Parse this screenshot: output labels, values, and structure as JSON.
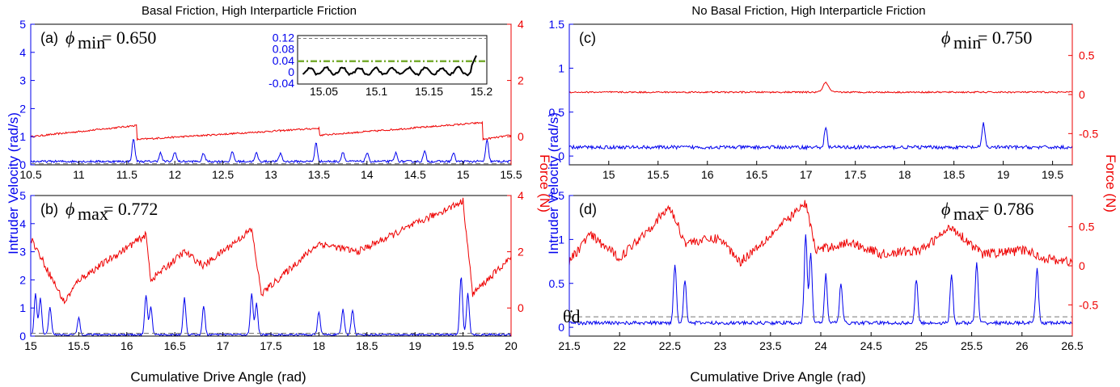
{
  "colors": {
    "velocity": "#0000ee",
    "force": "#ee0000",
    "stall": "#000000",
    "dashed": "#777777",
    "inset_green": "#77ac30"
  },
  "labels": {
    "title_left": "Basal Friction, High Interparticle Friction",
    "title_right": "No Basal Friction, High Interparticle Friction",
    "ylabel_left": "Intruder Velocity (rad/s)",
    "ylabel_right": "Force (N)",
    "xlabel_left": "Cumulative Drive Angle (rad)",
    "xlabel_right": "Cumulative Drive Angle (rad)",
    "theta_dot_d": "θ̇d"
  },
  "chart_data": [
    {
      "panel": "(a)",
      "type": "line",
      "phi_label": "min",
      "phi_value": "= 0.650",
      "xlim": [
        10.5,
        15.5
      ],
      "x_ticks": [
        "10.5",
        "11",
        "11.5",
        "12",
        "12.5",
        "13",
        "13.5",
        "14",
        "14.5",
        "15",
        "15.5"
      ],
      "ylim_left": [
        0,
        5
      ],
      "y_ticks_left": [
        "0",
        "1",
        "2",
        "3",
        "4",
        "5"
      ],
      "ylim_right": [
        -1,
        4
      ],
      "y_ticks_right": [
        "0",
        "2",
        "4"
      ],
      "threshold_velocity": 0.04,
      "series": [
        {
          "name": "velocity",
          "axis": "left",
          "baseline": 0.12,
          "spikes": [
            [
              11.57,
              0.8
            ],
            [
              11.85,
              0.3
            ],
            [
              12.0,
              0.35
            ],
            [
              12.3,
              0.3
            ],
            [
              12.6,
              0.35
            ],
            [
              12.85,
              0.3
            ],
            [
              13.1,
              0.3
            ],
            [
              13.47,
              0.65
            ],
            [
              13.75,
              0.35
            ],
            [
              14.0,
              0.3
            ],
            [
              14.3,
              0.3
            ],
            [
              14.6,
              0.35
            ],
            [
              14.9,
              0.3
            ],
            [
              15.25,
              0.75
            ]
          ]
        },
        {
          "name": "force",
          "axis": "right",
          "baseline": 0.05,
          "ramps": [
            [
              10.5,
              0.0
            ],
            [
              11.6,
              0.4
            ],
            [
              11.6,
              -0.1
            ],
            [
              13.5,
              0.3
            ],
            [
              13.5,
              0.05
            ],
            [
              15.2,
              0.5
            ],
            [
              15.2,
              -0.1
            ],
            [
              15.5,
              0.05
            ]
          ]
        }
      ],
      "inset": {
        "xlim": [
          15.025,
          15.205
        ],
        "x_ticks": [
          "15.05",
          "15.1",
          "15.15",
          "15.2"
        ],
        "ylim": [
          -0.04,
          0.13
        ],
        "y_ticks": [
          "-0.04",
          "0",
          "0.04",
          "0.08",
          "0.12"
        ],
        "dashed_gray": 0.12,
        "dash_green": 0.04
      }
    },
    {
      "panel": "(b)",
      "type": "line",
      "phi_label": "max",
      "phi_value": "= 0.772",
      "xlim": [
        15,
        20
      ],
      "x_ticks": [
        "15",
        "15.5",
        "16",
        "16.5",
        "17",
        "17.5",
        "18",
        "18.5",
        "19",
        "19.5",
        "20"
      ],
      "ylim_left": [
        0,
        5
      ],
      "y_ticks_left": [
        "0",
        "1",
        "2",
        "3",
        "4",
        "5"
      ],
      "ylim_right": [
        -1,
        4
      ],
      "y_ticks_right": [
        "0",
        "2",
        "4"
      ],
      "threshold_velocity": 0.1,
      "series": [
        {
          "name": "velocity",
          "axis": "left",
          "spikes": [
            [
              15.05,
              1.45
            ],
            [
              15.1,
              1.3
            ],
            [
              15.2,
              1.0
            ],
            [
              15.5,
              0.6
            ],
            [
              16.2,
              1.4
            ],
            [
              16.25,
              1.0
            ],
            [
              16.6,
              1.3
            ],
            [
              16.8,
              1.0
            ],
            [
              17.3,
              1.45
            ],
            [
              17.35,
              1.1
            ],
            [
              18.0,
              0.8
            ],
            [
              18.25,
              0.9
            ],
            [
              18.35,
              0.9
            ],
            [
              19.48,
              2.1
            ],
            [
              19.55,
              1.5
            ]
          ]
        },
        {
          "name": "force",
          "axis": "right",
          "ramps": [
            [
              15.0,
              2.5
            ],
            [
              15.35,
              0.2
            ],
            [
              15.5,
              1.0
            ],
            [
              16.2,
              2.6
            ],
            [
              16.25,
              1.0
            ],
            [
              16.6,
              2.0
            ],
            [
              16.8,
              1.5
            ],
            [
              17.3,
              2.8
            ],
            [
              17.4,
              0.5
            ],
            [
              18.0,
              2.3
            ],
            [
              18.4,
              2.0
            ],
            [
              19.5,
              3.8
            ],
            [
              19.6,
              0.5
            ],
            [
              20.0,
              1.8
            ]
          ]
        }
      ]
    },
    {
      "panel": "(c)",
      "type": "line",
      "phi_label": "min",
      "phi_value": "= 0.750",
      "xlim": [
        14.6,
        19.7
      ],
      "x_ticks": [
        "15",
        "15.5",
        "16",
        "16.5",
        "17",
        "17.5",
        "18",
        "18.5",
        "19",
        "19.5"
      ],
      "ylim_left": [
        -0.1,
        1.5
      ],
      "y_ticks_left": [
        "0",
        "0.5",
        "1",
        "1.5"
      ],
      "ylim_right": [
        -0.9,
        0.9
      ],
      "y_ticks_right": [
        "-0.5",
        "0",
        "0.5"
      ],
      "series": [
        {
          "name": "velocity",
          "axis": "left",
          "baseline": 0.1,
          "spikes": [
            [
              17.2,
              0.22
            ],
            [
              18.8,
              0.28
            ]
          ]
        },
        {
          "name": "force",
          "axis": "right",
          "baseline": 0.03,
          "bumps": [
            [
              17.2,
              0.12
            ]
          ]
        }
      ]
    },
    {
      "panel": "(d)",
      "type": "line",
      "phi_label": "max",
      "phi_value": "= 0.786",
      "xlim": [
        21.5,
        26.5
      ],
      "x_ticks": [
        "21.5",
        "22",
        "22.5",
        "23",
        "23.5",
        "24",
        "24.5",
        "25",
        "25.5",
        "26",
        "26.5"
      ],
      "ylim_left": [
        -0.1,
        1.5
      ],
      "y_ticks_left": [
        "0",
        "0.5",
        "1",
        "1.5"
      ],
      "ylim_right": [
        -0.9,
        0.9
      ],
      "y_ticks_right": [
        "-0.5",
        "0",
        "0.5"
      ],
      "threshold_velocity": 0.12,
      "series": [
        {
          "name": "velocity",
          "axis": "left",
          "spikes": [
            [
              22.55,
              0.68
            ],
            [
              22.65,
              0.5
            ],
            [
              23.85,
              1.0
            ],
            [
              23.9,
              0.8
            ],
            [
              24.05,
              0.55
            ],
            [
              24.2,
              0.45
            ],
            [
              24.95,
              0.5
            ],
            [
              25.3,
              0.55
            ],
            [
              25.55,
              0.68
            ],
            [
              26.15,
              0.62
            ]
          ]
        },
        {
          "name": "force",
          "axis": "right",
          "ramps": [
            [
              21.5,
              0.05
            ],
            [
              21.7,
              0.4
            ],
            [
              22.0,
              0.1
            ],
            [
              22.5,
              0.75
            ],
            [
              22.65,
              0.3
            ],
            [
              23.0,
              0.35
            ],
            [
              23.2,
              0.05
            ],
            [
              23.85,
              0.8
            ],
            [
              23.95,
              0.2
            ],
            [
              24.3,
              0.3
            ],
            [
              24.6,
              0.15
            ],
            [
              25.0,
              0.2
            ],
            [
              25.3,
              0.5
            ],
            [
              25.6,
              0.15
            ],
            [
              26.05,
              0.2
            ],
            [
              26.2,
              0.1
            ],
            [
              26.5,
              0.05
            ]
          ]
        }
      ]
    }
  ]
}
